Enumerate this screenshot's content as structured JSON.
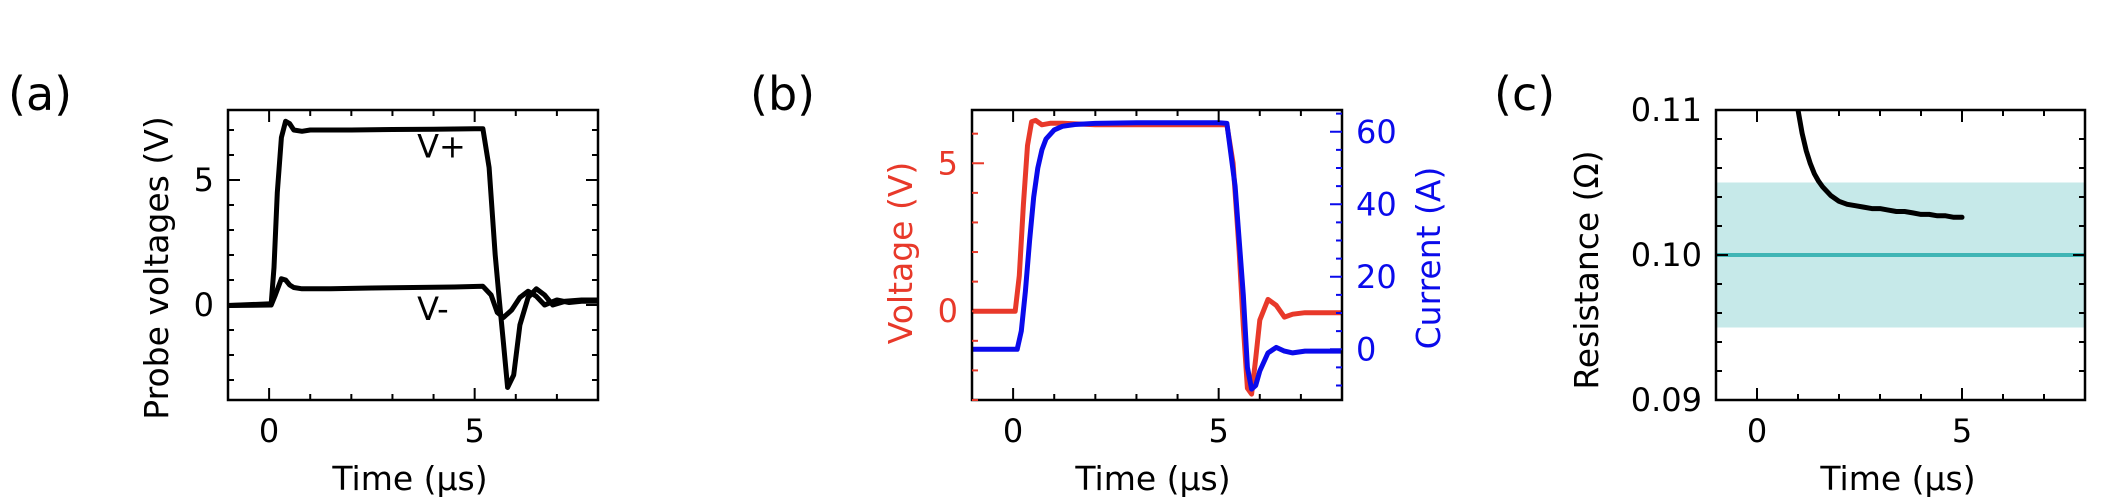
{
  "chart_data": [
    {
      "type": "line",
      "panel_label": "(a)",
      "xlabel": "Time (μs)",
      "ylabel": "Probe voltages (V)",
      "xlim": [
        -1,
        8
      ],
      "ylim": [
        -3.8,
        7.8
      ],
      "xticks": [
        0,
        5
      ],
      "yticks": [
        0,
        5
      ],
      "annotations": [
        {
          "text": "V+",
          "x": 3.6,
          "y": 5.9
        },
        {
          "text": "V-",
          "x": 3.6,
          "y": -0.6
        }
      ],
      "series": [
        {
          "name": "V+",
          "color": "#000000",
          "x": [
            -1,
            0.05,
            0.12,
            0.2,
            0.3,
            0.4,
            0.5,
            0.6,
            0.8,
            1.0,
            2.0,
            3.0,
            4.0,
            5.0,
            5.2,
            5.35,
            5.5,
            5.6,
            5.7,
            5.8,
            5.95,
            6.1,
            6.3,
            6.5,
            6.7,
            6.9,
            7.2,
            7.6,
            8.0
          ],
          "y": [
            -0.02,
            0.05,
            1.5,
            4.5,
            6.7,
            7.35,
            7.25,
            7.0,
            6.95,
            7.0,
            7.0,
            7.02,
            7.03,
            7.05,
            7.05,
            5.5,
            2.0,
            0.2,
            -1.5,
            -3.3,
            -2.8,
            -0.8,
            0.3,
            0.65,
            0.4,
            0.0,
            0.15,
            0.2,
            0.2
          ]
        },
        {
          "name": "V-",
          "color": "#000000",
          "x": [
            -1,
            0.05,
            0.15,
            0.3,
            0.4,
            0.5,
            0.6,
            0.8,
            1.5,
            2.5,
            3.5,
            4.5,
            5.2,
            5.4,
            5.55,
            5.7,
            5.9,
            6.1,
            6.3,
            6.5,
            6.7,
            7.0,
            7.3,
            7.6,
            8.0
          ],
          "y": [
            -0.02,
            0.0,
            0.4,
            1.05,
            1.0,
            0.8,
            0.7,
            0.65,
            0.65,
            0.68,
            0.7,
            0.72,
            0.75,
            0.4,
            -0.3,
            -0.5,
            -0.2,
            0.3,
            0.55,
            0.35,
            0.0,
            0.2,
            0.1,
            0.15,
            0.15
          ]
        }
      ]
    },
    {
      "type": "line",
      "panel_label": "(b)",
      "xlabel": "Time (μs)",
      "ylabel": "Voltage (V)",
      "y2label": "Current (A)",
      "xlim": [
        -1,
        8
      ],
      "ylim": [
        -3.0,
        6.8
      ],
      "y2lim": [
        -14,
        66
      ],
      "xticks": [
        0,
        5
      ],
      "yticks": [
        0,
        5
      ],
      "y2ticks": [
        0,
        20,
        40,
        60
      ],
      "colors": {
        "voltage": "#e8392a",
        "current": "#0a0aeb"
      },
      "series": [
        {
          "name": "Voltage",
          "axis": "left",
          "color": "#e8392a",
          "x": [
            -1,
            0.05,
            0.15,
            0.25,
            0.35,
            0.45,
            0.55,
            0.7,
            0.9,
            1.2,
            2.0,
            3.0,
            4.0,
            5.0,
            5.2,
            5.35,
            5.5,
            5.6,
            5.7,
            5.8,
            5.9,
            6.0,
            6.2,
            6.4,
            6.6,
            6.8,
            7.1,
            7.5,
            8.0
          ],
          "y": [
            0.0,
            0.0,
            1.2,
            3.6,
            5.6,
            6.4,
            6.45,
            6.3,
            6.35,
            6.35,
            6.3,
            6.3,
            6.3,
            6.3,
            6.3,
            5.0,
            2.0,
            -0.5,
            -2.6,
            -2.8,
            -1.6,
            -0.3,
            0.4,
            0.2,
            -0.2,
            -0.1,
            -0.05,
            -0.05,
            -0.05
          ]
        },
        {
          "name": "Current",
          "axis": "right",
          "color": "#0a0aeb",
          "x": [
            -1,
            0.1,
            0.2,
            0.3,
            0.4,
            0.5,
            0.6,
            0.7,
            0.8,
            1.0,
            1.2,
            1.5,
            2.0,
            3.0,
            4.0,
            5.0,
            5.2,
            5.4,
            5.6,
            5.7,
            5.8,
            5.9,
            6.0,
            6.2,
            6.4,
            6.6,
            6.8,
            7.1,
            7.5,
            8.0
          ],
          "y": [
            0.0,
            0.0,
            5.0,
            16.0,
            30.0,
            42.0,
            50.0,
            55.0,
            58.0,
            60.5,
            61.5,
            62.0,
            62.3,
            62.5,
            62.5,
            62.5,
            62.3,
            45.0,
            15.0,
            -5.0,
            -11.0,
            -10.0,
            -6.0,
            -1.0,
            0.5,
            -0.5,
            -1.0,
            -0.5,
            -0.5,
            -0.5
          ]
        }
      ]
    },
    {
      "type": "line",
      "panel_label": "(c)",
      "xlabel": "Time (μs)",
      "ylabel": "Resistance (Ω)",
      "xlim": [
        -1,
        8
      ],
      "ylim": [
        0.09,
        0.11
      ],
      "xticks": [
        0,
        5
      ],
      "yticks": [
        0.09,
        0.1,
        0.11
      ],
      "ytick_labels": [
        "0.09",
        "0.10",
        "0.11"
      ],
      "reference": {
        "value": 0.1,
        "band": [
          0.095,
          0.105
        ],
        "color": "#3fb5b5",
        "band_color": "#c6e9e9"
      },
      "series": [
        {
          "name": "Resistance",
          "color": "#000000",
          "x": [
            1.0,
            1.1,
            1.2,
            1.3,
            1.4,
            1.5,
            1.6,
            1.7,
            1.8,
            2.0,
            2.2,
            2.4,
            2.6,
            2.8,
            3.0,
            3.2,
            3.4,
            3.6,
            3.8,
            4.0,
            4.2,
            4.4,
            4.6,
            4.8,
            5.0
          ],
          "y": [
            0.11,
            0.1084,
            0.1072,
            0.1063,
            0.1056,
            0.1051,
            0.1047,
            0.1044,
            0.1041,
            0.1037,
            0.1035,
            0.1034,
            0.1033,
            0.1032,
            0.1032,
            0.1031,
            0.103,
            0.103,
            0.1029,
            0.1028,
            0.1028,
            0.1027,
            0.1027,
            0.1026,
            0.1026
          ]
        }
      ]
    }
  ]
}
